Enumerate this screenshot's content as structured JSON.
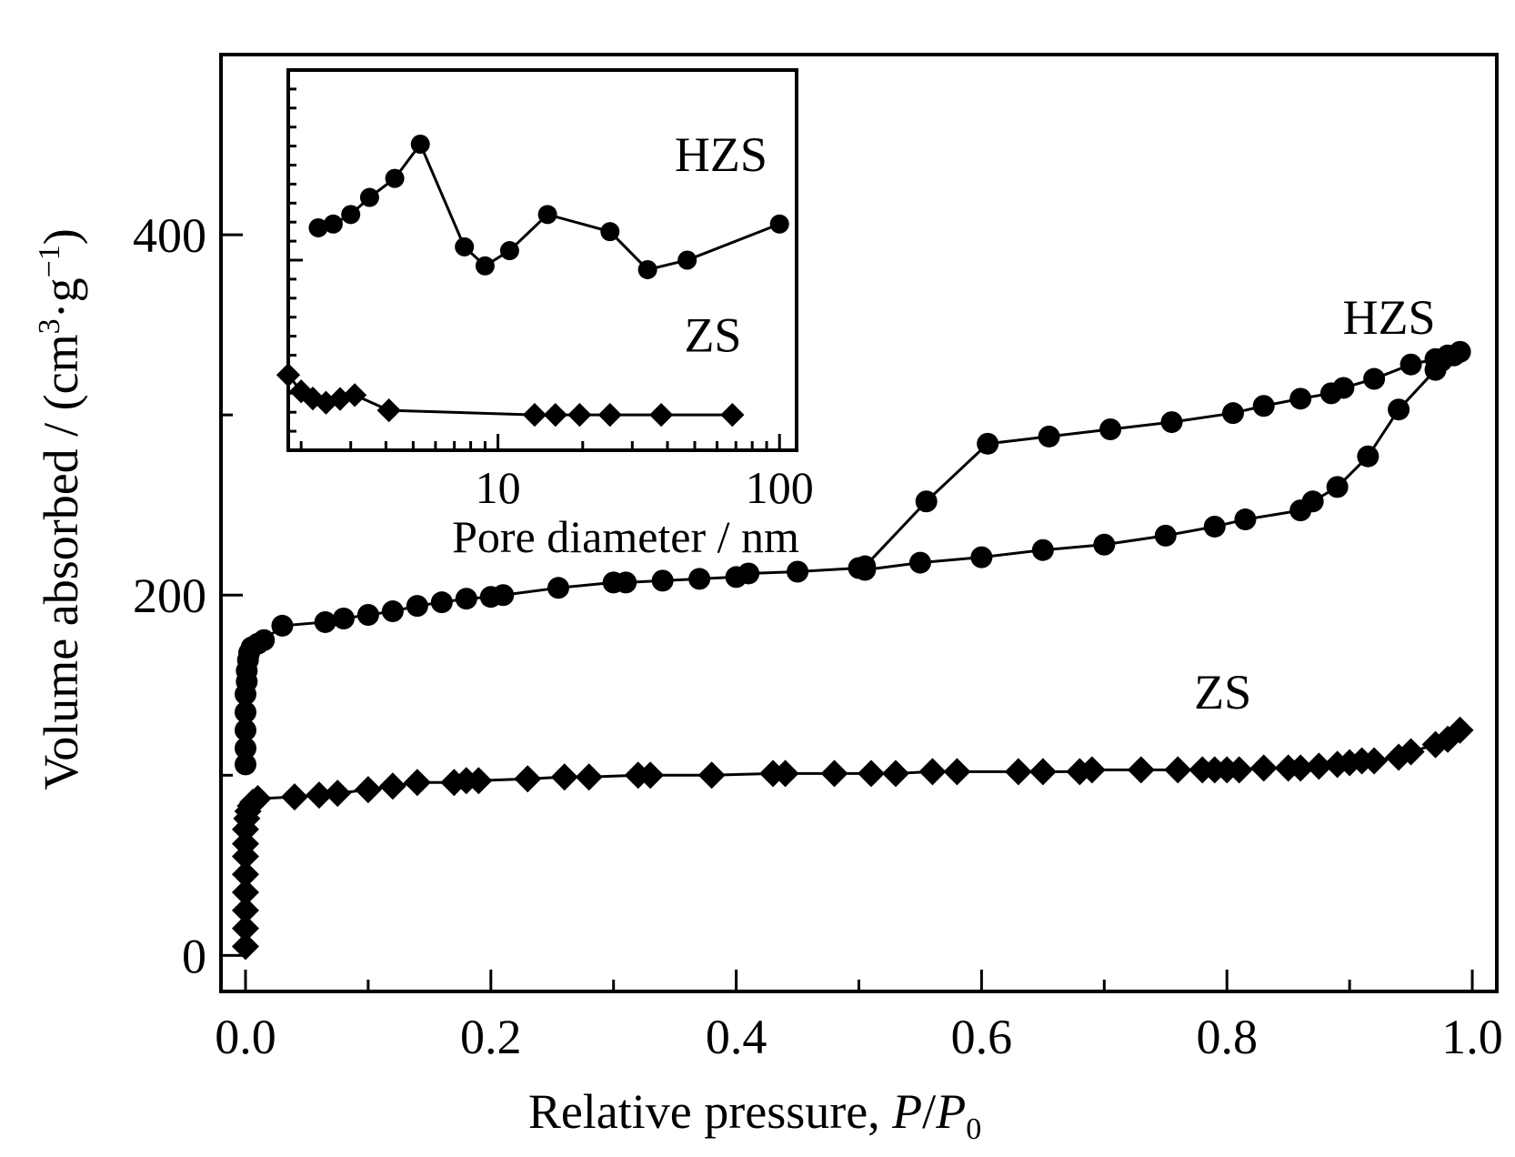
{
  "chart_data": [
    {
      "type": "scatter",
      "xlabel_text": "Relative pressure, ",
      "xlabel_italic_1": "P",
      "xlabel_slash": "/",
      "xlabel_italic_2": "P",
      "xlabel_sub": "0",
      "ylabel_text": "Volume absorbed / (cm",
      "ylabel_sup_1": "3",
      "ylabel_mid": "·g",
      "ylabel_sup_2": "−1",
      "ylabel_end": ")",
      "xlim": [
        -0.02,
        1.02
      ],
      "ylim": [
        -20,
        500
      ],
      "xticks": [
        "0.0",
        "0.2",
        "0.4",
        "0.6",
        "0.8",
        "1.0"
      ],
      "xtick_values": [
        0,
        0.2,
        0.4,
        0.6,
        0.8,
        1.0
      ],
      "yticks": [
        "0",
        "200",
        "400"
      ],
      "ytick_values": [
        0,
        200,
        400
      ],
      "y_minor_tick_values": [
        100,
        300
      ],
      "series": [
        {
          "name": "HZS",
          "marker": "circle",
          "label_x": 0.97,
          "label_y": 345,
          "segments": [
            {
              "x": [
                0.0,
                0.0,
                0.0,
                0.0,
                0.0,
                0.001,
                0.001,
                0.002,
                0.003,
                0.005,
                0.01,
                0.015,
                0.03,
                0.065,
                0.08,
                0.1,
                0.12,
                0.14,
                0.16,
                0.18,
                0.2,
                0.21,
                0.255,
                0.3,
                0.31,
                0.34,
                0.37,
                0.4,
                0.41,
                0.45,
                0.5,
                0.505,
                0.55,
                0.6,
                0.65,
                0.7,
                0.75,
                0.79,
                0.815,
                0.86,
                0.87,
                0.89,
                0.915,
                0.94,
                0.97,
                0.975,
                0.985,
                0.99
              ],
              "y": [
                106,
                115,
                125,
                135,
                145,
                152,
                158,
                164,
                168,
                171,
                173,
                175,
                183,
                185,
                187,
                189,
                191,
                194,
                196,
                198,
                199,
                200,
                204,
                207,
                207,
                208,
                209,
                210,
                212,
                213,
                215,
                214,
                218,
                221,
                225,
                228,
                233,
                238,
                242,
                247,
                252,
                260,
                277,
                303,
                325,
                330,
                333,
                335
              ]
            },
            {
              "x": [
                0.99,
                0.98,
                0.97,
                0.95,
                0.92,
                0.895,
                0.885,
                0.86,
                0.83,
                0.805,
                0.755,
                0.705,
                0.655,
                0.605,
                0.555,
                0.505
              ],
              "y": [
                335,
                333,
                331,
                328,
                320,
                315,
                312,
                309,
                305,
                301,
                296,
                292,
                288,
                284,
                252,
                216
              ]
            }
          ]
        },
        {
          "name": "ZS",
          "marker": "diamond",
          "label_x": 0.82,
          "label_y": 137,
          "segments": [
            {
              "x": [
                0.0,
                0.0,
                0.0,
                0.0,
                0.0,
                0.0,
                0.0,
                0.0,
                0.001,
                0.002,
                0.004,
                0.006,
                0.01,
                0.04,
                0.06,
                0.075,
                0.1,
                0.12,
                0.14,
                0.17,
                0.18,
                0.19,
                0.23,
                0.26,
                0.28,
                0.32,
                0.33,
                0.38,
                0.43,
                0.44,
                0.48,
                0.51,
                0.53,
                0.56,
                0.58,
                0.63,
                0.65,
                0.68,
                0.69,
                0.73,
                0.76,
                0.78,
                0.79,
                0.8,
                0.81,
                0.83,
                0.85,
                0.86,
                0.875,
                0.89,
                0.9,
                0.91,
                0.92,
                0.94,
                0.95,
                0.97,
                0.98,
                0.99
              ],
              "y": [
                5,
                15,
                25,
                35,
                45,
                55,
                62,
                70,
                76,
                80,
                83,
                85,
                87,
                88,
                89,
                90,
                92,
                94,
                96,
                96,
                97,
                97,
                98,
                99,
                99,
                100,
                100,
                100,
                101,
                101,
                101,
                101,
                101,
                102,
                102,
                102,
                102,
                102,
                103,
                103,
                103,
                103,
                103,
                103,
                103,
                104,
                104,
                104,
                105,
                106,
                107,
                108,
                108,
                110,
                113,
                117,
                120,
                125
              ]
            }
          ]
        }
      ]
    },
    {
      "type": "line",
      "xlabel": "Pore diameter / nm",
      "x_scale": "log",
      "xlim": [
        1.8,
        115
      ],
      "ylim": [
        0,
        1
      ],
      "xticks": [
        "10",
        "100"
      ],
      "xtick_values": [
        10,
        100
      ],
      "series": [
        {
          "name": "HZS",
          "marker": "circle",
          "label_x": 62,
          "label_y": 0.735,
          "x": [
            2.3,
            2.6,
            3.0,
            3.5,
            4.3,
            5.3,
            7.6,
            9.0,
            11,
            15,
            25,
            34,
            47,
            100
          ],
          "y": [
            0.585,
            0.595,
            0.62,
            0.665,
            0.715,
            0.805,
            0.535,
            0.485,
            0.525,
            0.62,
            0.575,
            0.475,
            0.5,
            0.595
          ]
        },
        {
          "name": "ZS",
          "marker": "diamond",
          "label_x": 58,
          "label_y": 0.26,
          "x": [
            1.8,
            2.0,
            2.2,
            2.45,
            2.75,
            3.1,
            4.1,
            13.5,
            16,
            19.5,
            25,
            38,
            68
          ],
          "y": [
            0.198,
            0.155,
            0.136,
            0.125,
            0.135,
            0.145,
            0.105,
            0.093,
            0.093,
            0.093,
            0.093,
            0.093,
            0.093
          ]
        }
      ]
    }
  ]
}
